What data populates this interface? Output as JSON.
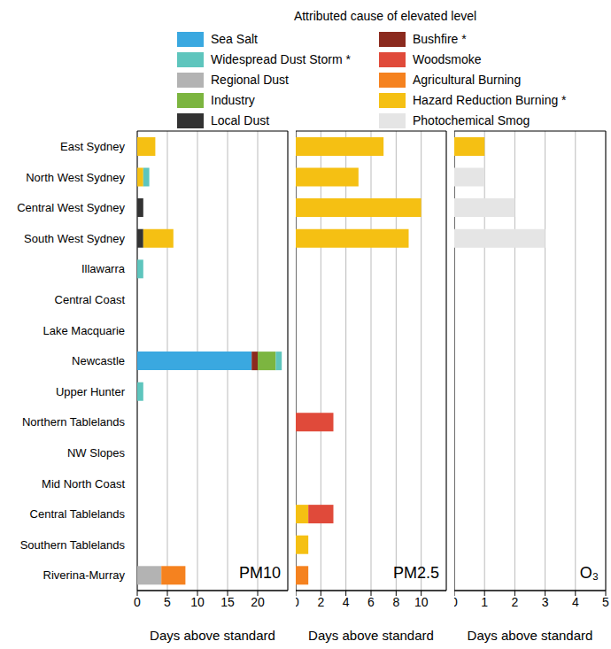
{
  "legend_title": "Attributed cause of elevated level",
  "legend_items": [
    {
      "name": "Sea Salt",
      "color": "#3aa8e0"
    },
    {
      "name": "Widespread Dust Storm *",
      "color": "#5ec5bd"
    },
    {
      "name": "Regional Dust",
      "color": "#b3b3b3"
    },
    {
      "name": "Industry",
      "color": "#7cb540"
    },
    {
      "name": "Local Dust",
      "color": "#333333"
    },
    {
      "name": "Bushfire *",
      "color": "#8b2a1e"
    },
    {
      "name": "Woodsmoke",
      "color": "#e04a3a"
    },
    {
      "name": "Agricultural Burning",
      "color": "#f5821f"
    },
    {
      "name": "Hazard Reduction Burning *",
      "color": "#f5c013"
    },
    {
      "name": "Photochemical Smog",
      "color": "#e5e5e5"
    }
  ],
  "chart_data": [
    {
      "type": "bar",
      "title": "PM10",
      "x_label": "Days above standard",
      "orientation": "horizontal",
      "stacked": true,
      "grid": true,
      "xlim": [
        0,
        25
      ],
      "xticks": [
        0,
        5,
        10,
        15,
        20
      ],
      "categories": [
        "East Sydney",
        "North West Sydney",
        "Central West Sydney",
        "South West Sydney",
        "Illawarra",
        "Central Coast",
        "Lake Macquarie",
        "Newcastle",
        "Upper Hunter",
        "Northern Tablelands",
        "NW Slopes",
        "Mid North Coast",
        "Central Tablelands",
        "Southern Tablelands",
        "Riverina-Murray"
      ],
      "series": [
        {
          "name": "Sea Salt",
          "color": "#3aa8e0",
          "values": [
            0,
            0,
            0,
            0,
            0,
            0,
            0,
            19,
            0,
            0,
            0,
            0,
            0,
            0,
            0
          ]
        },
        {
          "name": "Local Dust",
          "color": "#333333",
          "values": [
            0,
            0,
            1,
            1,
            0,
            0,
            0,
            0,
            0,
            0,
            0,
            0,
            0,
            0,
            0
          ]
        },
        {
          "name": "Regional Dust",
          "color": "#b3b3b3",
          "values": [
            0,
            0,
            0,
            0,
            0,
            0,
            0,
            0,
            0,
            0,
            0,
            0,
            0,
            0,
            4
          ]
        },
        {
          "name": "Hazard Reduction Burning *",
          "color": "#f5c013",
          "values": [
            3,
            1,
            0,
            5,
            0,
            0,
            0,
            0,
            0,
            0,
            0,
            0,
            0,
            0,
            0
          ]
        },
        {
          "name": "Bushfire *",
          "color": "#8b2a1e",
          "values": [
            0,
            0,
            0,
            0,
            0,
            0,
            0,
            1,
            0,
            0,
            0,
            0,
            0,
            0,
            0
          ]
        },
        {
          "name": "Industry",
          "color": "#7cb540",
          "values": [
            0,
            0,
            0,
            0,
            0,
            0,
            0,
            3,
            0,
            0,
            0,
            0,
            0,
            0,
            0
          ]
        },
        {
          "name": "Widespread Dust Storm *",
          "color": "#5ec5bd",
          "values": [
            0,
            1,
            0,
            0,
            1,
            0,
            0,
            1,
            1,
            0,
            0,
            0,
            0,
            0,
            0
          ]
        },
        {
          "name": "Agricultural Burning",
          "color": "#f5821f",
          "values": [
            0,
            0,
            0,
            0,
            0,
            0,
            0,
            0,
            0,
            0,
            0,
            0,
            0,
            0,
            4
          ]
        }
      ]
    },
    {
      "type": "bar",
      "title": "PM2.5",
      "x_label": "Days above standard",
      "orientation": "horizontal",
      "stacked": true,
      "grid": true,
      "xlim": [
        0,
        12
      ],
      "xticks": [
        0,
        2,
        4,
        6,
        8,
        10
      ],
      "categories": [
        "East Sydney",
        "North West Sydney",
        "Central West Sydney",
        "South West Sydney",
        "Illawarra",
        "Central Coast",
        "Lake Macquarie",
        "Newcastle",
        "Upper Hunter",
        "Northern Tablelands",
        "NW Slopes",
        "Mid North Coast",
        "Central Tablelands",
        "Southern Tablelands",
        "Riverina-Murray"
      ],
      "series": [
        {
          "name": "Hazard Reduction Burning *",
          "color": "#f5c013",
          "values": [
            7,
            5,
            10,
            9,
            0,
            0,
            0,
            0,
            0,
            0,
            0,
            0,
            1,
            1,
            0
          ]
        },
        {
          "name": "Woodsmoke",
          "color": "#e04a3a",
          "values": [
            0,
            0,
            0,
            0,
            0,
            0,
            0,
            0,
            0,
            3,
            0,
            0,
            2,
            0,
            0
          ]
        },
        {
          "name": "Agricultural Burning",
          "color": "#f5821f",
          "values": [
            0,
            0,
            0,
            0,
            0,
            0,
            0,
            0,
            0,
            0,
            0,
            0,
            0,
            0,
            1
          ]
        }
      ]
    },
    {
      "type": "bar",
      "title": "O₃",
      "x_label": "Days above standard",
      "orientation": "horizontal",
      "stacked": true,
      "grid": true,
      "xlim": [
        0,
        5
      ],
      "xticks": [
        0,
        1,
        2,
        3,
        4,
        5
      ],
      "categories": [
        "East Sydney",
        "North West Sydney",
        "Central West Sydney",
        "South West Sydney",
        "Illawarra",
        "Central Coast",
        "Lake Macquarie",
        "Newcastle",
        "Upper Hunter",
        "Northern Tablelands",
        "NW Slopes",
        "Mid North Coast",
        "Central Tablelands",
        "Southern Tablelands",
        "Riverina-Murray"
      ],
      "series": [
        {
          "name": "Hazard Reduction Burning *",
          "color": "#f5c013",
          "values": [
            1,
            0,
            0,
            0,
            0,
            0,
            0,
            0,
            0,
            0,
            0,
            0,
            0,
            0,
            0
          ]
        },
        {
          "name": "Photochemical Smog",
          "color": "#e5e5e5",
          "values": [
            0,
            1,
            2,
            3,
            0,
            0,
            0,
            0,
            0,
            0,
            0,
            0,
            0,
            0,
            0
          ]
        }
      ]
    }
  ]
}
